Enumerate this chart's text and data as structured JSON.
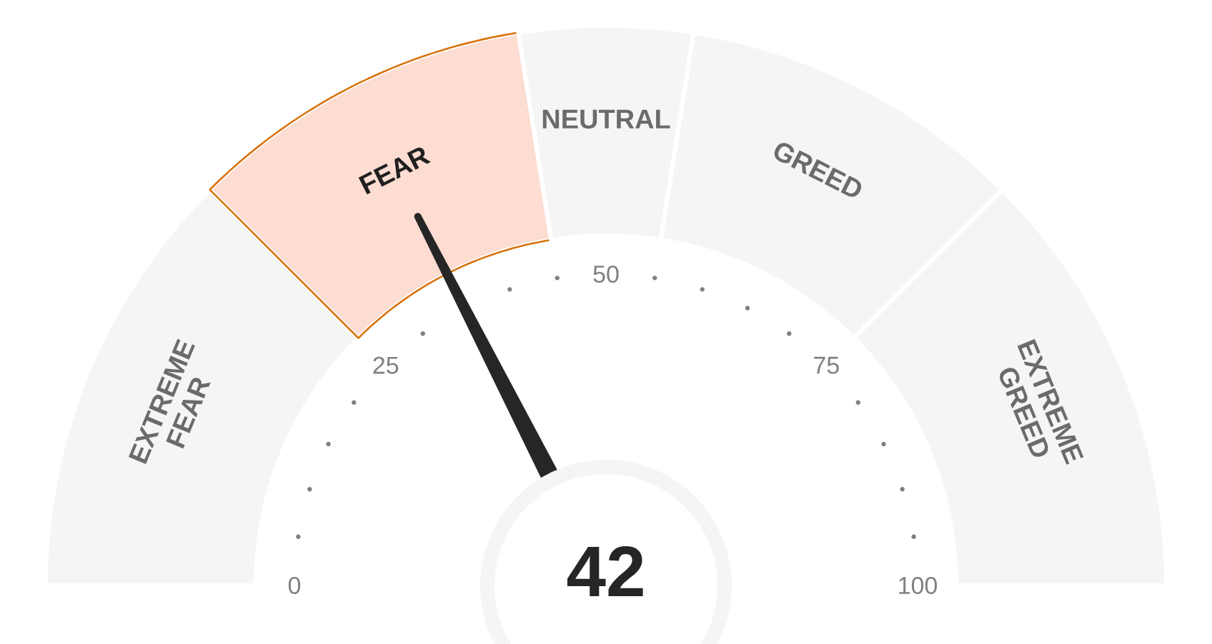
{
  "chart_data": {
    "type": "donut",
    "categories": [
      "EXTREME FEAR",
      "FEAR",
      "NEUTRAL",
      "GREED",
      "EXTREME GREED"
    ],
    "values": [
      25,
      20,
      10,
      20,
      25
    ],
    "colors": [
      "#f5f5f5",
      "#fddcd2",
      "#f5f5f5",
      "#f5f5f5",
      "#f5f5f5"
    ],
    "needle": "FEAR",
    "annotations": [
      "42",
      "0",
      "25",
      "50",
      "75",
      "100"
    ]
  }
}
